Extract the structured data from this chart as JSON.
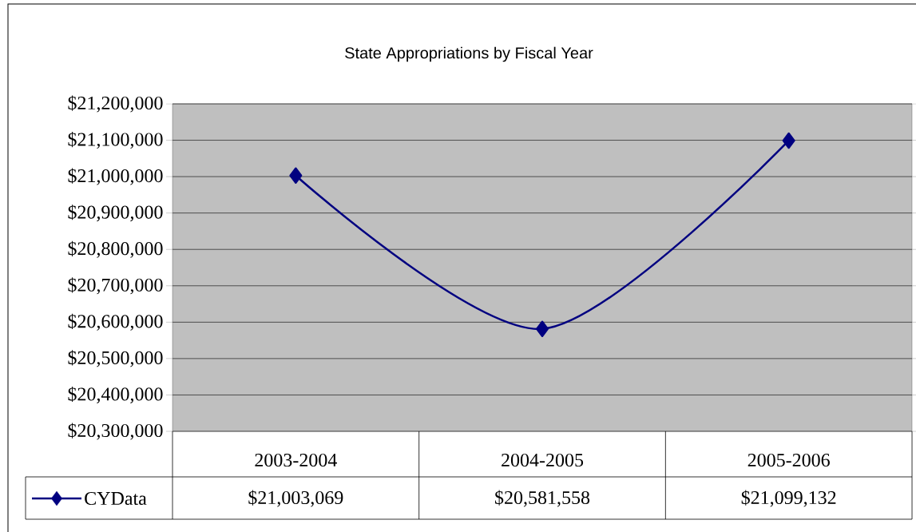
{
  "chart_data": {
    "type": "line",
    "title": "State Appropriations by Fiscal Year",
    "categories": [
      "2003-2004",
      "2004-2005",
      "2005-2006"
    ],
    "series": [
      {
        "name": "CYData",
        "color": "#000080",
        "values": [
          21003069,
          20581558,
          21099132
        ],
        "value_labels": [
          "$21,003,069",
          "$20,581,558",
          "$21,099,132"
        ]
      }
    ],
    "ylim": [
      20300000,
      21200000
    ],
    "yticks": [
      {
        "value": 20300000,
        "label": "$20,300,000"
      },
      {
        "value": 20400000,
        "label": "$20,400,000"
      },
      {
        "value": 20500000,
        "label": "$20,500,000"
      },
      {
        "value": 20600000,
        "label": "$20,600,000"
      },
      {
        "value": 20700000,
        "label": "$20,700,000"
      },
      {
        "value": 20800000,
        "label": "$20,800,000"
      },
      {
        "value": 20900000,
        "label": "$20,900,000"
      },
      {
        "value": 21000000,
        "label": "$21,000,000"
      },
      {
        "value": 21100000,
        "label": "$21,100,000"
      },
      {
        "value": 21200000,
        "label": "$21,200,000"
      }
    ],
    "grid": "y",
    "legend": "bottom left",
    "marker": "diamond",
    "line_style": "solid"
  }
}
